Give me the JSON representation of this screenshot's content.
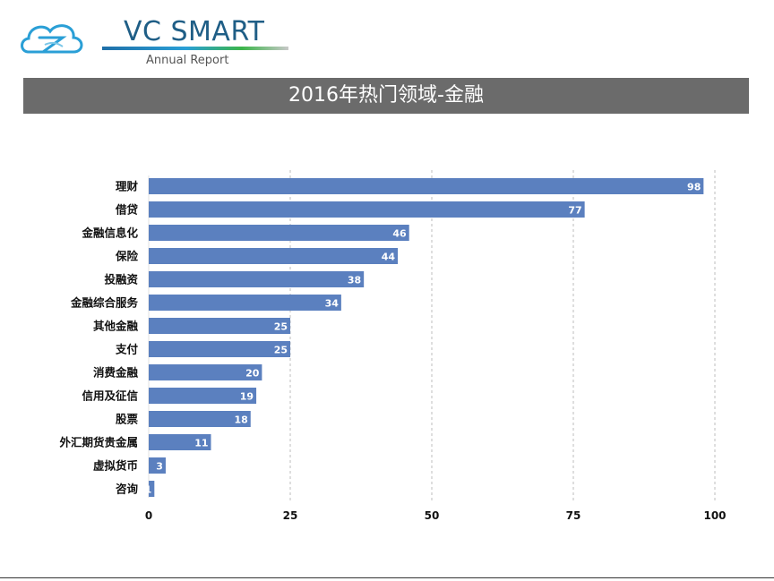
{
  "header": {
    "brand": "VC SMART",
    "subtitle": "Annual Report",
    "title": "2016年热门领域-金融"
  },
  "colors": {
    "bar": "#5b80bf",
    "title_bar": "#6b6b6b",
    "grid": "#bdbdbd"
  },
  "chart_data": {
    "type": "bar",
    "orientation": "horizontal",
    "title": "2016年热门领域-金融",
    "categories": [
      "理财",
      "借贷",
      "金融信息化",
      "保险",
      "投融资",
      "金融综合服务",
      "其他金融",
      "支付",
      "消费金融",
      "信用及征信",
      "股票",
      "外汇期货贵金属",
      "虚拟货币",
      "咨询"
    ],
    "values": [
      98,
      77,
      46,
      44,
      38,
      34,
      25,
      25,
      20,
      19,
      18,
      11,
      3,
      1
    ],
    "xlim": [
      0,
      100
    ],
    "xticks": [
      0,
      25,
      50,
      75,
      100
    ],
    "grid": "vertical dashed",
    "data_labels": true
  }
}
